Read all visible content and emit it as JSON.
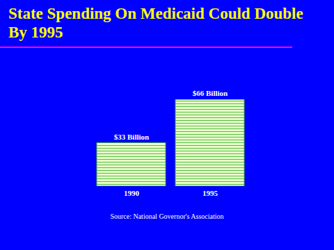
{
  "chart_data": {
    "type": "bar",
    "title": "State Spending On Medicaid Could Double By 1995",
    "categories": [
      "1990",
      "1995"
    ],
    "values": [
      33,
      66
    ],
    "value_labels": [
      "$33 Billion",
      "$66 Billion"
    ],
    "color": "#e6ffc8",
    "data_labels": true,
    "tick_labels": "x",
    "source": "Source: National Governor's Association"
  }
}
